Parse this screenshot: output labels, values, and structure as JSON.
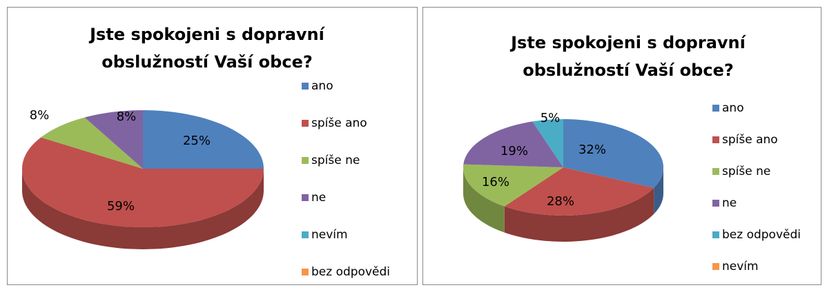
{
  "chart_data": [
    {
      "type": "pie3d",
      "title": "Jste spokojeni s dopravní obslužností Vaší obce?",
      "categories": [
        "ano",
        "spíše ano",
        "spíše ne",
        "ne",
        "nevím",
        "bez odpovědi"
      ],
      "values": [
        25,
        59,
        8,
        8,
        0,
        0
      ],
      "value_labels": [
        "25%",
        "59%",
        "8%",
        "8%",
        null,
        null
      ],
      "colors": [
        "#4f81bd",
        "#c0504d",
        "#9bbb59",
        "#8064a2",
        "#4bacc6",
        "#f79646"
      ],
      "legend": "right"
    },
    {
      "type": "pie3d",
      "title": "Jste spokojeni s dopravní obslužností Vaší obce?",
      "categories": [
        "ano",
        "spíše ano",
        "spíše ne",
        "ne",
        "bez odpovědi",
        "nevím"
      ],
      "values": [
        32,
        28,
        16,
        19,
        5,
        0
      ],
      "value_labels": [
        "32%",
        "28%",
        "16%",
        "19%",
        "5%",
        null
      ],
      "colors": [
        "#4f81bd",
        "#c0504d",
        "#9bbb59",
        "#8064a2",
        "#4bacc6",
        "#f79646"
      ],
      "legend": "right"
    }
  ]
}
